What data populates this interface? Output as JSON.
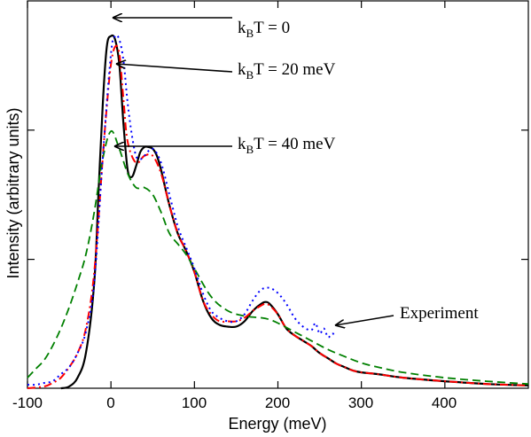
{
  "chart_data": {
    "type": "line",
    "xlabel": "Energy (meV)",
    "ylabel": "Intensity (arbitrary units)",
    "xlim": [
      -100,
      500
    ],
    "ylim": [
      0,
      1.1
    ],
    "x_ticks": [
      "-100",
      "0",
      "100",
      "200",
      "300",
      "400"
    ],
    "x_tick_values": [
      -100,
      0,
      100,
      200,
      300,
      400
    ],
    "y_tick_values": [
      0.366,
      0.733
    ],
    "grid": false,
    "legend": "none",
    "series": [
      {
        "key": "kT0",
        "color": "#000000",
        "style": "solid",
        "x": [
          -60,
          -50,
          -40,
          -30,
          -20,
          -15,
          -10,
          -5,
          0,
          5,
          10,
          15,
          20,
          25,
          30,
          35,
          40,
          45,
          50,
          55,
          60,
          70,
          80,
          90,
          100,
          110,
          120,
          130,
          140,
          150,
          160,
          170,
          180,
          185,
          190,
          200,
          210,
          220,
          230,
          240,
          250,
          260,
          270,
          280,
          290,
          300,
          320,
          350,
          400,
          450,
          500
        ],
        "y": [
          0.0,
          0.005,
          0.03,
          0.1,
          0.3,
          0.55,
          0.8,
          0.97,
          1.0,
          0.99,
          0.92,
          0.75,
          0.62,
          0.6,
          0.63,
          0.67,
          0.685,
          0.685,
          0.68,
          0.66,
          0.62,
          0.52,
          0.44,
          0.39,
          0.33,
          0.25,
          0.2,
          0.18,
          0.175,
          0.175,
          0.19,
          0.22,
          0.24,
          0.245,
          0.24,
          0.21,
          0.17,
          0.15,
          0.135,
          0.12,
          0.1,
          0.085,
          0.07,
          0.06,
          0.05,
          0.045,
          0.04,
          0.03,
          0.02,
          0.012,
          0.008
        ]
      },
      {
        "key": "kT20",
        "color": "#ff0000",
        "style": "dashdot",
        "x": [
          -100,
          -80,
          -70,
          -60,
          -50,
          -40,
          -30,
          -20,
          -10,
          -5,
          0,
          5,
          10,
          15,
          20,
          30,
          40,
          50,
          60,
          70,
          80,
          90,
          100,
          110,
          120,
          130,
          140,
          150,
          160,
          170,
          180,
          185,
          190,
          200,
          210,
          220,
          230,
          240,
          250,
          260,
          270,
          280,
          290,
          300,
          320,
          350,
          400,
          450,
          500
        ],
        "y": [
          0.0,
          0.005,
          0.015,
          0.03,
          0.06,
          0.1,
          0.17,
          0.33,
          0.65,
          0.8,
          0.92,
          0.97,
          0.95,
          0.82,
          0.7,
          0.64,
          0.66,
          0.66,
          0.61,
          0.52,
          0.44,
          0.39,
          0.33,
          0.25,
          0.21,
          0.19,
          0.19,
          0.19,
          0.2,
          0.22,
          0.235,
          0.24,
          0.235,
          0.21,
          0.17,
          0.15,
          0.135,
          0.12,
          0.1,
          0.085,
          0.07,
          0.06,
          0.05,
          0.045,
          0.04,
          0.03,
          0.02,
          0.012,
          0.008
        ]
      },
      {
        "key": "kT40",
        "color": "#008000",
        "style": "dashed",
        "x": [
          -100,
          -90,
          -80,
          -70,
          -60,
          -50,
          -40,
          -30,
          -20,
          -10,
          0,
          10,
          20,
          30,
          40,
          50,
          60,
          70,
          80,
          90,
          100,
          120,
          140,
          160,
          180,
          190,
          200,
          220,
          240,
          260,
          280,
          300,
          320,
          350,
          400,
          450,
          500
        ],
        "y": [
          0.03,
          0.055,
          0.08,
          0.12,
          0.17,
          0.23,
          0.3,
          0.38,
          0.5,
          0.65,
          0.73,
          0.68,
          0.61,
          0.57,
          0.57,
          0.55,
          0.5,
          0.44,
          0.41,
          0.38,
          0.34,
          0.26,
          0.22,
          0.205,
          0.2,
          0.195,
          0.185,
          0.16,
          0.135,
          0.11,
          0.09,
          0.072,
          0.06,
          0.045,
          0.03,
          0.02,
          0.012
        ]
      },
      {
        "key": "experiment",
        "color": "#0000ff",
        "style": "dotted",
        "x": [
          -100,
          -90,
          -80,
          -70,
          -60,
          -50,
          -40,
          -30,
          -20,
          -10,
          0,
          5,
          10,
          15,
          20,
          25,
          30,
          35,
          40,
          50,
          60,
          70,
          80,
          90,
          100,
          110,
          120,
          130,
          140,
          150,
          160,
          170,
          180,
          190,
          200,
          210,
          220,
          230,
          240,
          245,
          250,
          255,
          260,
          265,
          270
        ],
        "y": [
          0.01,
          0.01,
          0.015,
          0.02,
          0.04,
          0.06,
          0.1,
          0.16,
          0.3,
          0.65,
          0.95,
          1.0,
          0.99,
          0.93,
          0.81,
          0.72,
          0.66,
          0.65,
          0.66,
          0.68,
          0.64,
          0.55,
          0.46,
          0.4,
          0.34,
          0.27,
          0.22,
          0.2,
          0.19,
          0.19,
          0.21,
          0.25,
          0.28,
          0.285,
          0.27,
          0.24,
          0.2,
          0.175,
          0.165,
          0.185,
          0.155,
          0.17,
          0.145,
          0.155,
          0.15
        ]
      }
    ],
    "annotations": [
      {
        "key": "a0",
        "main": "k",
        "sub": "B",
        "rest": "T = 0",
        "x": 0,
        "y": 1.0
      },
      {
        "key": "a20",
        "main": "k",
        "sub": "B",
        "rest": "T = 20 meV",
        "x": 5,
        "y": 0.97
      },
      {
        "key": "a40",
        "main": "k",
        "sub": "B",
        "rest": "T = 40 meV",
        "x": 0,
        "y": 0.73
      },
      {
        "key": "aexp",
        "main": "Experiment",
        "sub": "",
        "rest": "",
        "x": 265,
        "y": 0.16
      }
    ]
  }
}
